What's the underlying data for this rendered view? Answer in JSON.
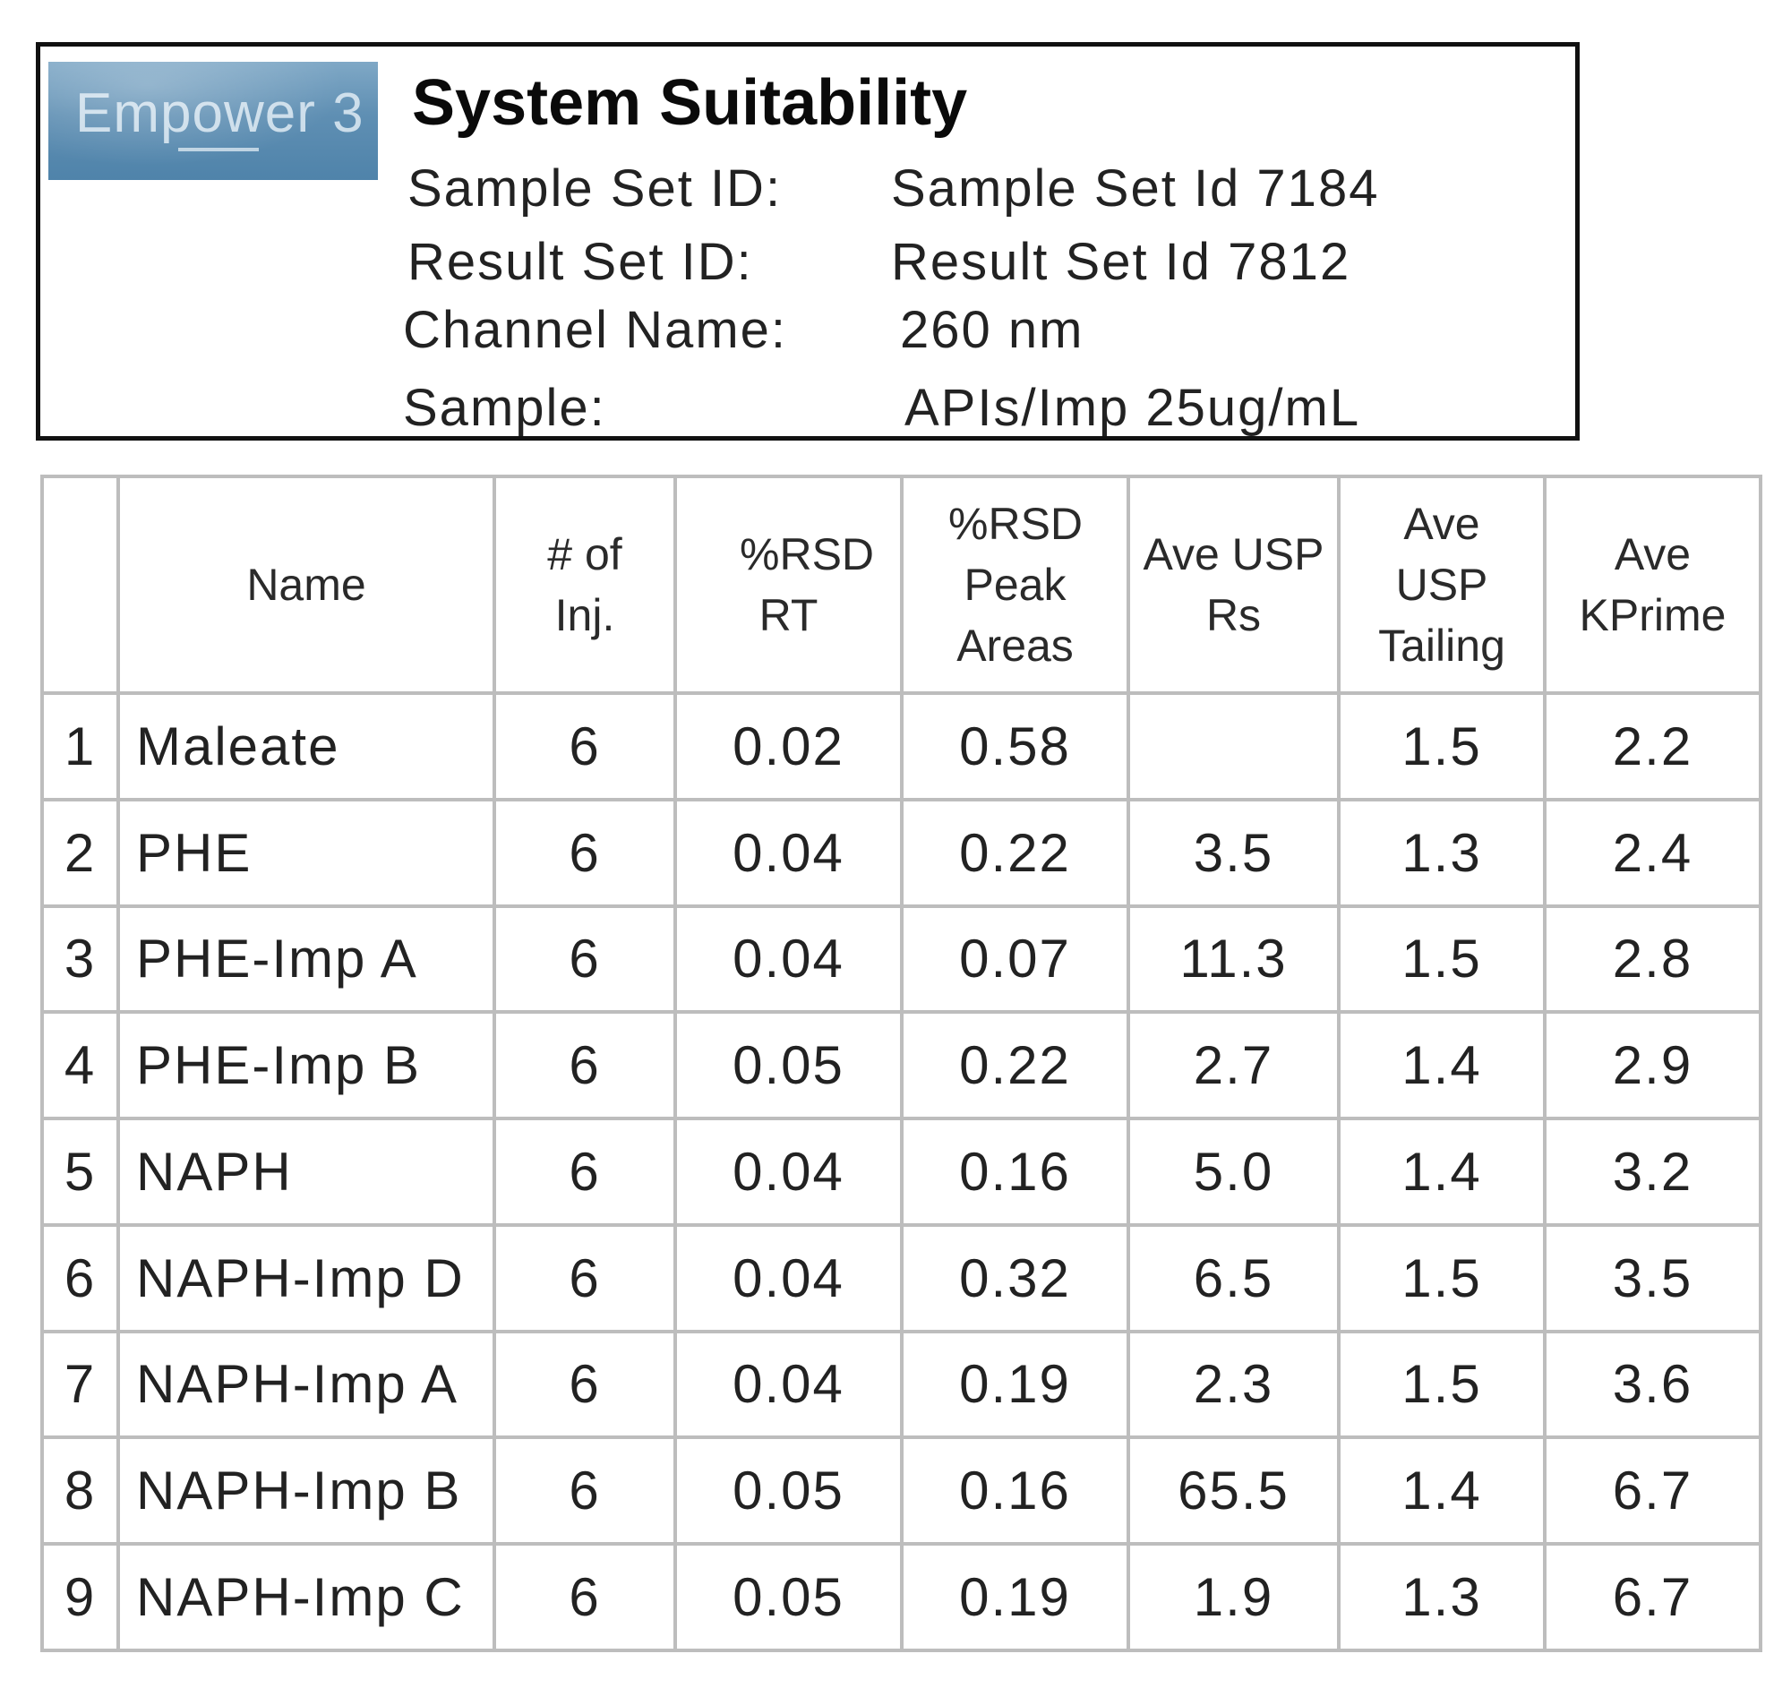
{
  "logo": {
    "text": "Empower 3"
  },
  "header": {
    "title": "System Suitability",
    "fields": [
      {
        "label": "Sample Set ID:",
        "value": "Sample Set Id 7184"
      },
      {
        "label": "Result Set ID:",
        "value": "Result Set Id 7812"
      },
      {
        "label": "Channel Name:",
        "value": "260 nm"
      },
      {
        "label": "Sample:",
        "value": "APIs/Imp 25ug/mL"
      }
    ]
  },
  "table": {
    "columns": [
      {
        "label": ""
      },
      {
        "label": "Name"
      },
      {
        "label": "# of Inj."
      },
      {
        "label": "%RSD RT"
      },
      {
        "label": "%RSD Peak Areas"
      },
      {
        "label": "Ave USP Rs"
      },
      {
        "label": "Ave USP Tailing"
      },
      {
        "label": "Ave KPrime"
      }
    ],
    "rows": [
      [
        "1",
        "Maleate",
        "6",
        "0.02",
        "0.58",
        "",
        "1.5",
        "2.2"
      ],
      [
        "2",
        "PHE",
        "6",
        "0.04",
        "0.22",
        "3.5",
        "1.3",
        "2.4"
      ],
      [
        "3",
        "PHE-Imp A",
        "6",
        "0.04",
        "0.07",
        "11.3",
        "1.5",
        "2.8"
      ],
      [
        "4",
        "PHE-Imp B",
        "6",
        "0.05",
        "0.22",
        "2.7",
        "1.4",
        "2.9"
      ],
      [
        "5",
        "NAPH",
        "6",
        "0.04",
        "0.16",
        "5.0",
        "1.4",
        "3.2"
      ],
      [
        "6",
        "NAPH-Imp D",
        "6",
        "0.04",
        "0.32",
        "6.5",
        "1.5",
        "3.5"
      ],
      [
        "7",
        "NAPH-Imp A",
        "6",
        "0.04",
        "0.19",
        "2.3",
        "1.5",
        "3.6"
      ],
      [
        "8",
        "NAPH-Imp B",
        "6",
        "0.05",
        "0.16",
        "65.5",
        "1.4",
        "6.7"
      ],
      [
        "9",
        "NAPH-Imp C",
        "6",
        "0.05",
        "0.19",
        "1.9",
        "1.3",
        "6.7"
      ]
    ]
  }
}
